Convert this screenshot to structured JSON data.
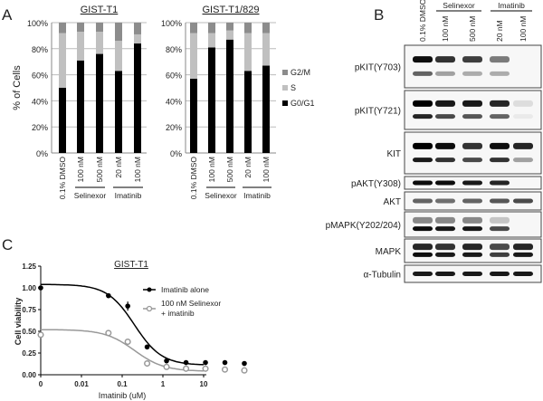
{
  "panels": {
    "a": "A",
    "b": "B",
    "c": "C"
  },
  "chart_data": [
    {
      "type": "bar",
      "stacked": true,
      "title": "GIST-T1",
      "ylabel": "% of Cells",
      "ylim": [
        0,
        100
      ],
      "yticks": [
        "0%",
        "20%",
        "40%",
        "60%",
        "80%",
        "100%"
      ],
      "categories": [
        "0.1% DMSO",
        "100 nM",
        "500 nM",
        "20 nM",
        "100 nM"
      ],
      "groups": [
        {
          "label": "Selinexor",
          "from": 1,
          "to": 2
        },
        {
          "label": "Imatinib",
          "from": 3,
          "to": 4
        }
      ],
      "series": [
        {
          "name": "G0/G1",
          "color": "#000000",
          "values": [
            50,
            71,
            76,
            63,
            84
          ]
        },
        {
          "name": "S",
          "color": "#c0c0c0",
          "values": [
            42,
            22,
            17,
            23,
            7
          ]
        },
        {
          "name": "G2/M",
          "color": "#8c8c8c",
          "values": [
            8,
            7,
            7,
            14,
            9
          ]
        }
      ]
    },
    {
      "type": "bar",
      "stacked": true,
      "title": "GIST-T1/829",
      "ylim": [
        0,
        100
      ],
      "yticks": [
        "0%",
        "20%",
        "40%",
        "60%",
        "80%",
        "100%"
      ],
      "categories": [
        "0.1% DMSO",
        "100 nM",
        "500 nM",
        "20 nM",
        "100 nM"
      ],
      "groups": [
        {
          "label": "Selinexor",
          "from": 1,
          "to": 2
        },
        {
          "label": "Imatinib",
          "from": 3,
          "to": 4
        }
      ],
      "legend": {
        "placement": "right",
        "entries": [
          "G2/M",
          "S",
          "G0/G1"
        ]
      },
      "series": [
        {
          "name": "G0/G1",
          "color": "#000000",
          "values": [
            57,
            81,
            87,
            63,
            67
          ]
        },
        {
          "name": "S",
          "color": "#c0c0c0",
          "values": [
            35,
            11,
            7,
            29,
            25
          ]
        },
        {
          "name": "G2/M",
          "color": "#8c8c8c",
          "values": [
            8,
            8,
            6,
            8,
            8
          ]
        }
      ]
    },
    {
      "type": "scatter",
      "title": "GIST-T1",
      "xlabel": "Imatinib (uM)",
      "ylabel": "Cell viability",
      "xscale": "log",
      "xticks": [
        "0",
        "0.01",
        "0.1",
        "1",
        "10"
      ],
      "yticks": [
        "0.00",
        "0.25",
        "0.50",
        "0.75",
        "1.00",
        "1.25"
      ],
      "ylim": [
        0,
        1.25
      ],
      "x": [
        0,
        0.0046,
        0.0137,
        0.041,
        0.123,
        0.37,
        1.11,
        3.33,
        10
      ],
      "series": [
        {
          "name": "Imatinib alone",
          "color": "#000000",
          "values": [
            1.0,
            0.91,
            0.79,
            0.32,
            0.16,
            0.14,
            0.14,
            0.14,
            0.13
          ],
          "fit": {
            "top": 1.04,
            "bottom": 0.11,
            "ic50": 0.02,
            "hill": 1.3
          }
        },
        {
          "name": "100 nM Selinexor + imatinib",
          "legend_lines": [
            "100 nM Selinexor",
            "+ imatinib"
          ],
          "color": "#999999",
          "values": [
            0.46,
            0.48,
            0.38,
            0.13,
            0.09,
            0.07,
            0.07,
            0.06,
            0.05
          ],
          "fit": {
            "top": 0.52,
            "bottom": 0.04,
            "ic50": 0.02,
            "hill": 1.2
          }
        }
      ]
    }
  ],
  "western_blot": {
    "lanes": [
      "0.1% DMSO",
      "100 nM",
      "500 nM",
      "20 nM",
      "100 nM"
    ],
    "groups": [
      {
        "label": "Selinexor",
        "from": 1,
        "to": 2
      },
      {
        "label": "Imatinib",
        "from": 3,
        "to": 4
      }
    ],
    "rows": [
      {
        "label": "pKIT(Y703)",
        "bands": [
          [
            0.95,
            0.8,
            0.75,
            0.5,
            0.0
          ],
          [
            0.6,
            0.35,
            0.3,
            0.3,
            0.0
          ]
        ]
      },
      {
        "label": "pKIT(Y721)",
        "bands": [
          [
            1.0,
            0.9,
            0.9,
            0.85,
            0.1
          ],
          [
            0.85,
            0.7,
            0.65,
            0.6,
            0.05
          ]
        ]
      },
      {
        "label": "KIT",
        "bands": [
          [
            1.0,
            0.95,
            0.8,
            0.95,
            0.85
          ],
          [
            0.9,
            0.8,
            0.7,
            0.8,
            0.35
          ]
        ]
      },
      {
        "label": "pAKT(Y308)",
        "bands": [
          [
            0.95,
            0.95,
            0.9,
            0.85,
            0.0
          ]
        ]
      },
      {
        "label": "AKT",
        "bands": [
          [
            0.6,
            0.55,
            0.6,
            0.65,
            0.7
          ]
        ]
      },
      {
        "label": "pMAPK(Y202/204)",
        "bands": [
          [
            0.45,
            0.45,
            0.45,
            0.2,
            0.0
          ],
          [
            0.95,
            0.9,
            0.9,
            0.7,
            0.0
          ]
        ]
      },
      {
        "label": "MAPK",
        "bands": [
          [
            0.85,
            0.8,
            0.85,
            0.7,
            0.85
          ],
          [
            0.95,
            0.9,
            0.9,
            0.75,
            0.9
          ]
        ]
      },
      {
        "label": "α-Tubulin",
        "bands": [
          [
            0.9,
            0.9,
            0.9,
            0.9,
            0.9
          ]
        ]
      }
    ]
  }
}
